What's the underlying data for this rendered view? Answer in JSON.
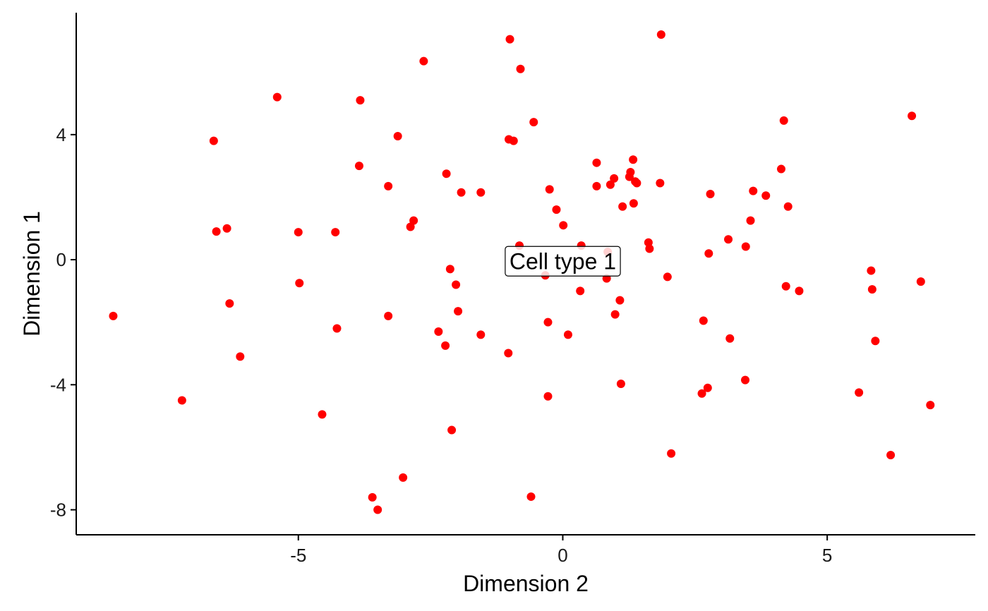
{
  "chart_data": {
    "type": "scatter",
    "xlabel": "Dimension 2",
    "ylabel": "Dimension 1",
    "xlim": [
      -9.2,
      7.8
    ],
    "ylim": [
      -8.8,
      7.9
    ],
    "xticks": [
      -5,
      0,
      5
    ],
    "yticks": [
      -8,
      -4,
      0,
      4
    ],
    "xtick_labels": [
      "-5",
      "0",
      "5"
    ],
    "ytick_labels": [
      "-8",
      "-4",
      "0",
      "4"
    ],
    "grid": false,
    "color": "#ff0000",
    "annotation": {
      "text": "Cell type 1",
      "x": 0.0,
      "y": -0.05
    },
    "series": [
      {
        "x": [
          -8.5,
          -7.2,
          -6.6,
          -6.55,
          -6.35,
          -6.3,
          -6.1,
          -5.4,
          -5.0,
          -4.98,
          -4.55,
          -4.3,
          -4.27,
          -3.85,
          -3.83,
          -3.6,
          -3.5,
          -3.3,
          -3.3,
          -3.12,
          -3.02,
          -2.88,
          -2.82,
          -2.63,
          -2.35,
          -2.22,
          -2.2,
          -2.13,
          -2.1,
          -2.02,
          -1.98,
          -1.92,
          -1.55,
          -1.55,
          -1.03,
          -1.02,
          -1.0,
          -0.93,
          -0.82,
          -0.8,
          -0.6,
          -0.55,
          -0.33,
          -0.28,
          -0.28,
          -0.25,
          -0.12,
          0.01,
          0.1,
          0.33,
          0.35,
          0.64,
          0.64,
          0.83,
          0.85,
          0.9,
          0.97,
          0.99,
          1.08,
          1.1,
          1.13,
          1.26,
          1.28,
          1.33,
          1.34,
          1.37,
          1.4,
          1.62,
          1.64,
          1.84,
          1.86,
          1.98,
          2.05,
          2.63,
          2.66,
          2.74,
          2.76,
          2.79,
          3.13,
          3.16,
          3.45,
          3.46,
          3.55,
          3.6,
          3.84,
          4.13,
          4.18,
          4.22,
          4.26,
          4.47,
          5.6,
          5.83,
          5.85,
          5.91,
          6.2,
          6.6,
          6.77,
          6.95
        ],
        "y": [
          -1.8,
          -4.5,
          3.8,
          0.9,
          1.0,
          -1.4,
          -3.1,
          5.2,
          0.88,
          -0.75,
          -4.95,
          0.88,
          -2.2,
          3.0,
          5.1,
          -7.6,
          -8.0,
          2.35,
          -1.8,
          3.95,
          -6.97,
          1.05,
          1.25,
          6.35,
          -2.3,
          -2.75,
          2.75,
          -0.3,
          -5.45,
          -0.8,
          -1.65,
          2.15,
          -2.4,
          2.15,
          -2.99,
          3.85,
          7.05,
          3.8,
          0.45,
          6.1,
          -7.58,
          4.4,
          -0.5,
          -2.0,
          -4.37,
          2.25,
          1.6,
          1.1,
          -2.4,
          -1.0,
          0.45,
          3.1,
          2.35,
          -0.6,
          0.25,
          2.4,
          2.6,
          -1.75,
          -1.3,
          -3.97,
          1.7,
          2.65,
          2.8,
          3.2,
          1.8,
          2.5,
          2.45,
          0.55,
          0.35,
          2.45,
          7.2,
          -0.55,
          -6.2,
          -4.28,
          -1.95,
          -4.1,
          0.2,
          2.1,
          0.65,
          -2.52,
          -3.85,
          0.42,
          1.25,
          2.2,
          2.05,
          2.9,
          4.45,
          -0.85,
          1.7,
          -1.0,
          -4.25,
          -0.35,
          -0.95,
          -2.6,
          -6.25,
          4.6,
          -0.7,
          -4.65
        ]
      }
    ]
  }
}
